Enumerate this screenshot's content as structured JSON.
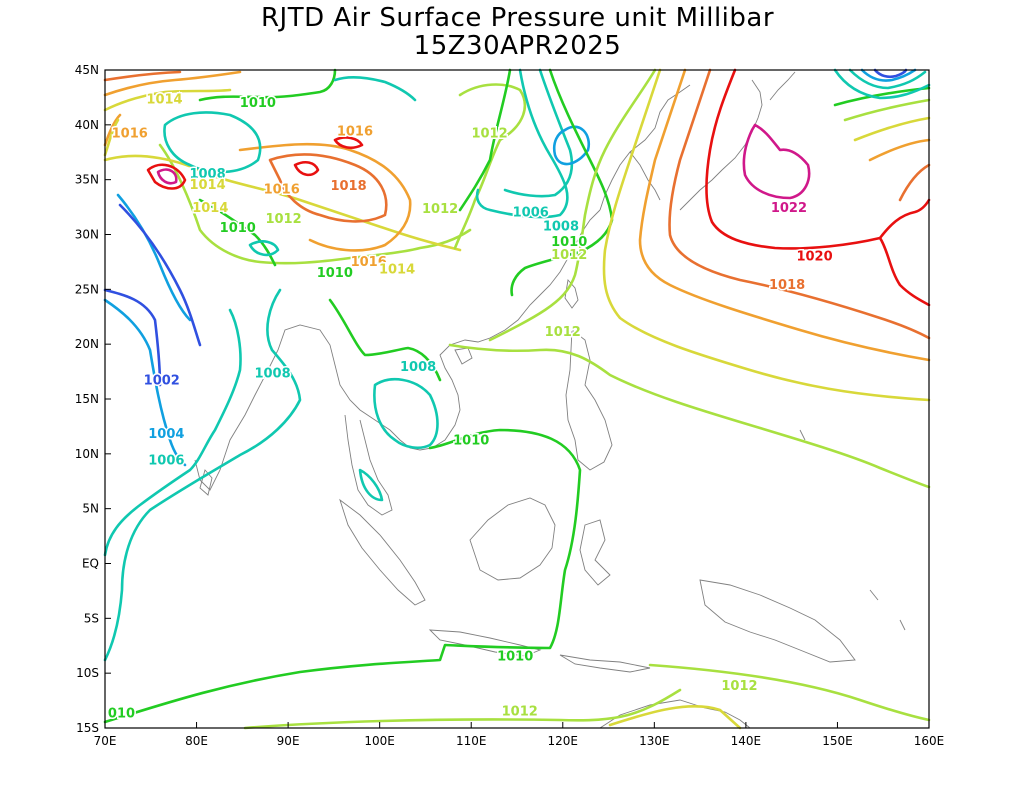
{
  "title": "RJTD Air Surface Pressure unit Millibar",
  "subtitle": "15Z30APR2025",
  "map": {
    "lon_range": [
      70,
      160
    ],
    "lat_range": [
      -15,
      45
    ],
    "lon_ticks": [
      "70E",
      "80E",
      "90E",
      "100E",
      "110E",
      "120E",
      "130E",
      "140E",
      "150E",
      "160E"
    ],
    "lat_ticks": [
      "15S",
      "10S",
      "5S",
      "EQ",
      "5N",
      "10N",
      "15N",
      "20N",
      "25N",
      "30N",
      "35N",
      "40N",
      "45N"
    ]
  },
  "contour_labels": [
    {
      "text": "1014",
      "lon": 76.5,
      "lat": 42.4,
      "color": "#d8d83a"
    },
    {
      "text": "1010",
      "lon": 86.7,
      "lat": 42.1,
      "color": "#22cc22"
    },
    {
      "text": "1016",
      "lon": 72.7,
      "lat": 39.3,
      "color": "#f0a030"
    },
    {
      "text": "1016",
      "lon": 97.3,
      "lat": 39.5,
      "color": "#f0a030"
    },
    {
      "text": "1012",
      "lon": 112.0,
      "lat": 39.3,
      "color": "#a8e040"
    },
    {
      "text": "1008",
      "lon": 81.2,
      "lat": 35.6,
      "color": "#10c8b0"
    },
    {
      "text": "1014",
      "lon": 81.2,
      "lat": 34.6,
      "color": "#d8d83a"
    },
    {
      "text": "1016",
      "lon": 89.3,
      "lat": 34.2,
      "color": "#f0a030"
    },
    {
      "text": "1018",
      "lon": 96.6,
      "lat": 34.5,
      "color": "#e87030"
    },
    {
      "text": "1014",
      "lon": 81.5,
      "lat": 32.5,
      "color": "#d8d83a"
    },
    {
      "text": "1012",
      "lon": 89.5,
      "lat": 31.5,
      "color": "#a8e040"
    },
    {
      "text": "1010",
      "lon": 84.5,
      "lat": 30.7,
      "color": "#22cc22"
    },
    {
      "text": "1012",
      "lon": 106.6,
      "lat": 32.4,
      "color": "#a8e040"
    },
    {
      "text": "1006",
      "lon": 116.5,
      "lat": 32.1,
      "color": "#10c8b0"
    },
    {
      "text": "1008",
      "lon": 119.8,
      "lat": 30.8,
      "color": "#10c8b0"
    },
    {
      "text": "1010",
      "lon": 120.7,
      "lat": 29.4,
      "color": "#22cc22"
    },
    {
      "text": "1012",
      "lon": 120.7,
      "lat": 28.2,
      "color": "#a8e040"
    },
    {
      "text": "1016",
      "lon": 98.8,
      "lat": 27.6,
      "color": "#f0a030"
    },
    {
      "text": "1014",
      "lon": 101.9,
      "lat": 26.9,
      "color": "#d8d83a"
    },
    {
      "text": "1010",
      "lon": 95.1,
      "lat": 26.6,
      "color": "#22cc22"
    },
    {
      "text": "1022",
      "lon": 144.7,
      "lat": 32.5,
      "color": "#d0188a"
    },
    {
      "text": "1020",
      "lon": 147.5,
      "lat": 28.1,
      "color": "#e81010"
    },
    {
      "text": "1018",
      "lon": 144.5,
      "lat": 25.5,
      "color": "#e87030"
    },
    {
      "text": "1012",
      "lon": 120.0,
      "lat": 21.2,
      "color": "#a8e040"
    },
    {
      "text": "1002",
      "lon": 76.2,
      "lat": 16.8,
      "color": "#3050e0"
    },
    {
      "text": "1008",
      "lon": 88.3,
      "lat": 17.4,
      "color": "#10c8b0"
    },
    {
      "text": "1008",
      "lon": 104.2,
      "lat": 18.0,
      "color": "#10c8b0"
    },
    {
      "text": "1004",
      "lon": 76.7,
      "lat": 11.9,
      "color": "#10a0e0"
    },
    {
      "text": "1006",
      "lon": 76.7,
      "lat": 9.5,
      "color": "#10c8b0"
    },
    {
      "text": "1010",
      "lon": 110.0,
      "lat": 11.3,
      "color": "#22cc22"
    },
    {
      "text": "1010",
      "lon": 114.8,
      "lat": -8.4,
      "color": "#22cc22"
    },
    {
      "text": "1012",
      "lon": 139.3,
      "lat": -11.1,
      "color": "#a8e040"
    },
    {
      "text": "1012",
      "lon": 115.3,
      "lat": -13.4,
      "color": "#a8e040"
    },
    {
      "text": "010",
      "lon": 71.8,
      "lat": -13.6,
      "color": "#22cc22"
    }
  ],
  "colors": {
    "coast": "#808080",
    "frame": "#000000",
    "levels": {
      "1002": "#3050e0",
      "1004": "#10a0e0",
      "1006": "#10c8b0",
      "1008": "#10c8b0",
      "1010": "#22cc22",
      "1012": "#a8e040",
      "1014": "#d8d83a",
      "1016": "#f0a030",
      "1018": "#e87030",
      "1020": "#e81010",
      "1022": "#d0188a"
    }
  }
}
